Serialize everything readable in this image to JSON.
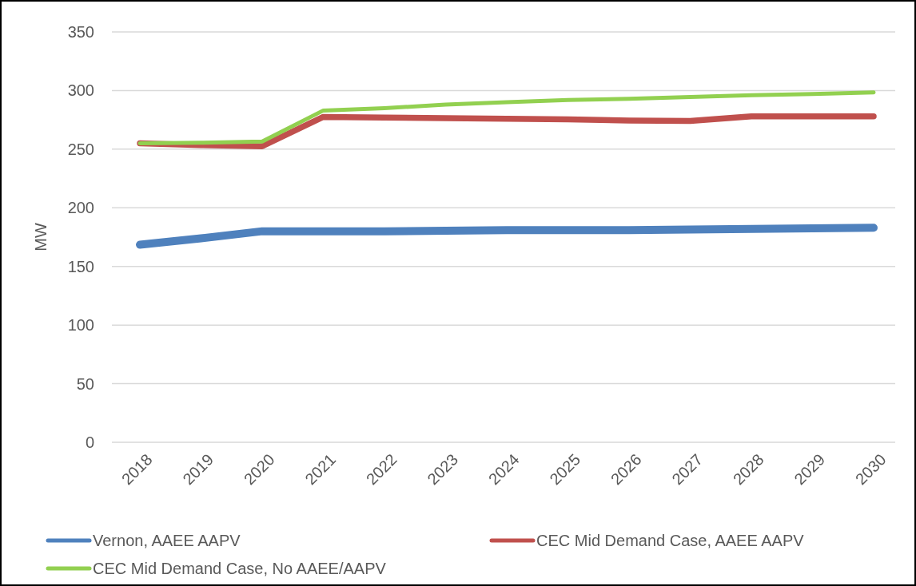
{
  "chart_data": {
    "type": "line",
    "ylabel": "MW",
    "categories": [
      "2018",
      "2019",
      "2020",
      "2021",
      "2022",
      "2023",
      "2024",
      "2025",
      "2026",
      "2027",
      "2028",
      "2029",
      "2030"
    ],
    "series": [
      {
        "name": "Vernon, AAEE AAPV",
        "color": "#4f81bd",
        "values": [
          168.5,
          174,
          180,
          180,
          180,
          180.5,
          181,
          181,
          181,
          181.5,
          182,
          182.5,
          183
        ]
      },
      {
        "name": "CEC Mid Demand Case, AAEE AAPV",
        "color": "#c0504d",
        "values": [
          255,
          253.5,
          252.5,
          277.5,
          277,
          276.5,
          276,
          275.5,
          274.5,
          274,
          278,
          278,
          278
        ]
      },
      {
        "name": "CEC Mid Demand Case, No AAEE/AAPV",
        "color": "#92d050",
        "values": [
          255,
          255.5,
          256.5,
          283,
          285,
          288,
          290,
          292,
          293,
          294.5,
          296,
          297,
          298.5
        ]
      }
    ],
    "ylim": [
      0,
      350
    ],
    "yticks": [
      0,
      50,
      100,
      150,
      200,
      250,
      300,
      350
    ],
    "grid": "y",
    "legend": "bottom",
    "line_style": "solid",
    "marker": "none"
  }
}
